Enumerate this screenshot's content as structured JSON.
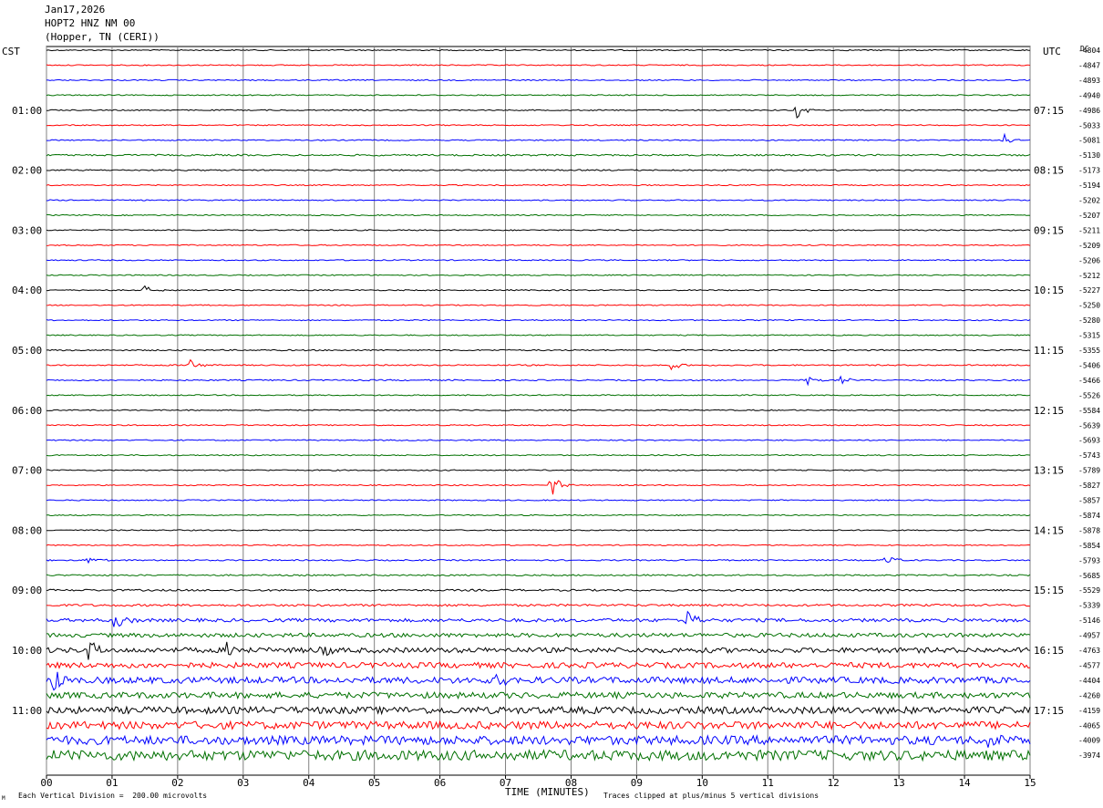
{
  "header": {
    "date": "Jan17,2026",
    "station": "HOPT2 HNZ NM 00",
    "location": "(Hopper, TN (CERI))"
  },
  "left_timezone": "CST",
  "right_timezone": "UTC",
  "dc_label": "DC",
  "footer": {
    "scale_note": "Each Vertical Division =  200.00 microvolts",
    "clip_note": "Traces clipped at plus/minus 5 vertical divisions",
    "corner_mark": "M"
  },
  "colors": {
    "cycle": [
      "#000000",
      "#ff0000",
      "#0000ff",
      "#007000"
    ],
    "grid": "#808080"
  },
  "chart_data": {
    "type": "line",
    "title": "HOPT2 HNZ NM 00",
    "xlabel": "TIME (MINUTES)",
    "ylabel": "",
    "xlim": [
      0,
      15
    ],
    "x_ticks": [
      "00",
      "01",
      "02",
      "03",
      "04",
      "05",
      "06",
      "07",
      "08",
      "09",
      "10",
      "11",
      "12",
      "13",
      "14",
      "15"
    ],
    "left_hour_labels": [
      "01:00",
      "02:00",
      "03:00",
      "04:00",
      "05:00",
      "06:00",
      "07:00",
      "08:00",
      "09:00",
      "10:00",
      "11:00"
    ],
    "right_hour_labels": [
      "07:15",
      "08:15",
      "09:15",
      "10:15",
      "11:15",
      "12:15",
      "13:15",
      "14:15",
      "15:15",
      "16:15",
      "17:15"
    ],
    "trace_count": 48,
    "traces_per_hour": 4,
    "dc_offsets": [
      "-4804",
      "-4847",
      "-4893",
      "-4940",
      "-4986",
      "-5033",
      "-5081",
      "-5130",
      "-5173",
      "-5194",
      "-5202",
      "-5207",
      "-5211",
      "-5209",
      "-5206",
      "-5212",
      "-5227",
      "-5250",
      "-5280",
      "-5315",
      "-5355",
      "-5406",
      "-5466",
      "-5526",
      "-5584",
      "-5639",
      "-5693",
      "-5743",
      "-5789",
      "-5827",
      "-5857",
      "-5874",
      "-5878",
      "-5854",
      "-5793",
      "-5685",
      "-5529",
      "-5339",
      "-5146",
      "-4957",
      "-4763",
      "-4577",
      "-4404",
      "-4260",
      "-4159",
      "-4065",
      "-4009",
      "-3974"
    ],
    "noise_levels": [
      0.6,
      0.6,
      0.6,
      0.6,
      0.6,
      0.6,
      0.6,
      0.9,
      0.7,
      0.6,
      0.6,
      0.6,
      0.6,
      0.6,
      0.6,
      0.6,
      0.6,
      0.6,
      0.6,
      0.6,
      0.7,
      0.7,
      0.7,
      0.6,
      0.6,
      0.6,
      0.6,
      0.6,
      0.6,
      0.6,
      0.6,
      0.6,
      0.6,
      0.6,
      0.7,
      0.8,
      1.0,
      1.2,
      1.8,
      2.2,
      2.8,
      3.0,
      3.5,
      3.3,
      3.8,
      4.2,
      4.8,
      5.5
    ],
    "events": [
      {
        "trace": 4,
        "minute": 11.45,
        "amplitude": 10
      },
      {
        "trace": 6,
        "minute": 14.6,
        "amplitude": 9
      },
      {
        "trace": 16,
        "minute": 1.5,
        "amplitude": 6
      },
      {
        "trace": 21,
        "minute": 2.2,
        "amplitude": 9
      },
      {
        "trace": 21,
        "minute": 9.5,
        "amplitude": 7
      },
      {
        "trace": 22,
        "minute": 11.6,
        "amplitude": 5
      },
      {
        "trace": 22,
        "minute": 12.1,
        "amplitude": 6
      },
      {
        "trace": 29,
        "minute": 7.7,
        "amplitude": 14
      },
      {
        "trace": 34,
        "minute": 0.65,
        "amplitude": 7
      },
      {
        "trace": 34,
        "minute": 12.8,
        "amplitude": 9
      },
      {
        "trace": 38,
        "minute": 1.05,
        "amplitude": 14
      },
      {
        "trace": 38,
        "minute": 9.75,
        "amplitude": 14
      },
      {
        "trace": 40,
        "minute": 0.65,
        "amplitude": 14
      },
      {
        "trace": 40,
        "minute": 2.75,
        "amplitude": 12
      },
      {
        "trace": 40,
        "minute": 4.2,
        "amplitude": 10
      },
      {
        "trace": 42,
        "minute": 0.1,
        "amplitude": 14
      },
      {
        "trace": 42,
        "minute": 6.85,
        "amplitude": 16
      },
      {
        "trace": 46,
        "minute": 14.3,
        "amplitude": 12
      }
    ]
  }
}
